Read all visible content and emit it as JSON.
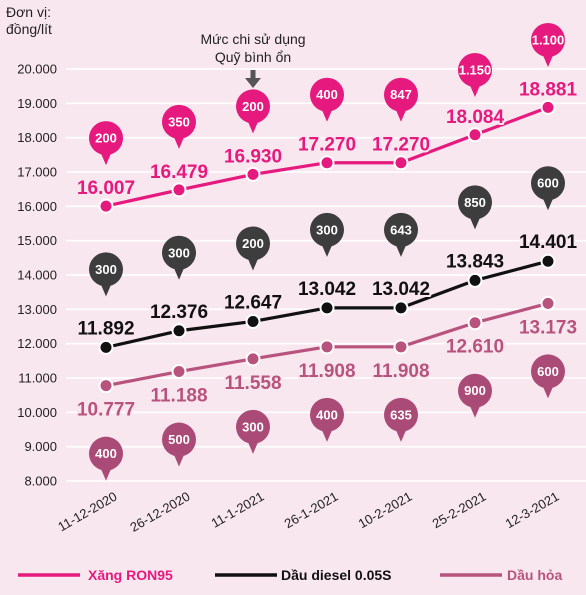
{
  "chart_data": {
    "type": "line",
    "unit_label": [
      "Đơn vị:",
      "đồng/lít"
    ],
    "annotation": [
      "Mức chi sử dụng",
      "Quỹ bình ổn"
    ],
    "categories": [
      "11-12-2020",
      "26-12-2020",
      "11-1-2021",
      "26-1-2021",
      "10-2-2021",
      "25-2-2021",
      "12-3-2021"
    ],
    "ylim": [
      8000,
      20000
    ],
    "yticks": [
      "8.000",
      "9.000",
      "10.000",
      "11.000",
      "12.000",
      "13.000",
      "14.000",
      "15.000",
      "16.000",
      "17.000",
      "18.000",
      "19.000",
      "20.000"
    ],
    "series": [
      {
        "name": "Xăng RON95",
        "color": "#e6197e",
        "values": [
          16007,
          16479,
          16930,
          17270,
          17270,
          18084,
          18881
        ],
        "labels": [
          "16.007",
          "16.479",
          "16.930",
          "17.270",
          "17.270",
          "18.084",
          "18.881"
        ],
        "fund": [
          "200",
          "350",
          "200",
          "400",
          "847",
          "1.150",
          "1.100"
        ]
      },
      {
        "name": "Dầu diesel 0.05S",
        "color": "#111111",
        "values": [
          11892,
          12376,
          12647,
          13042,
          13042,
          13843,
          14401
        ],
        "labels": [
          "11.892",
          "12.376",
          "12.647",
          "13.042",
          "13.042",
          "13.843",
          "14.401"
        ],
        "fund": [
          "300",
          "300",
          "200",
          "300",
          "643",
          "850",
          "600"
        ],
        "fund_color": "#3d3d3d"
      },
      {
        "name": "Dầu hỏa",
        "color": "#b8537e",
        "values": [
          10777,
          11188,
          11558,
          11908,
          11908,
          12610,
          13173
        ],
        "labels": [
          "10.777",
          "11.188",
          "11.558",
          "11.908",
          "11.908",
          "12.610",
          "13.173"
        ],
        "fund": [
          "400",
          "500",
          "300",
          "400",
          "635",
          "900",
          "600"
        ],
        "fund_color": "#aa4a76"
      }
    ],
    "grid": true,
    "legend_position": "bottom"
  }
}
